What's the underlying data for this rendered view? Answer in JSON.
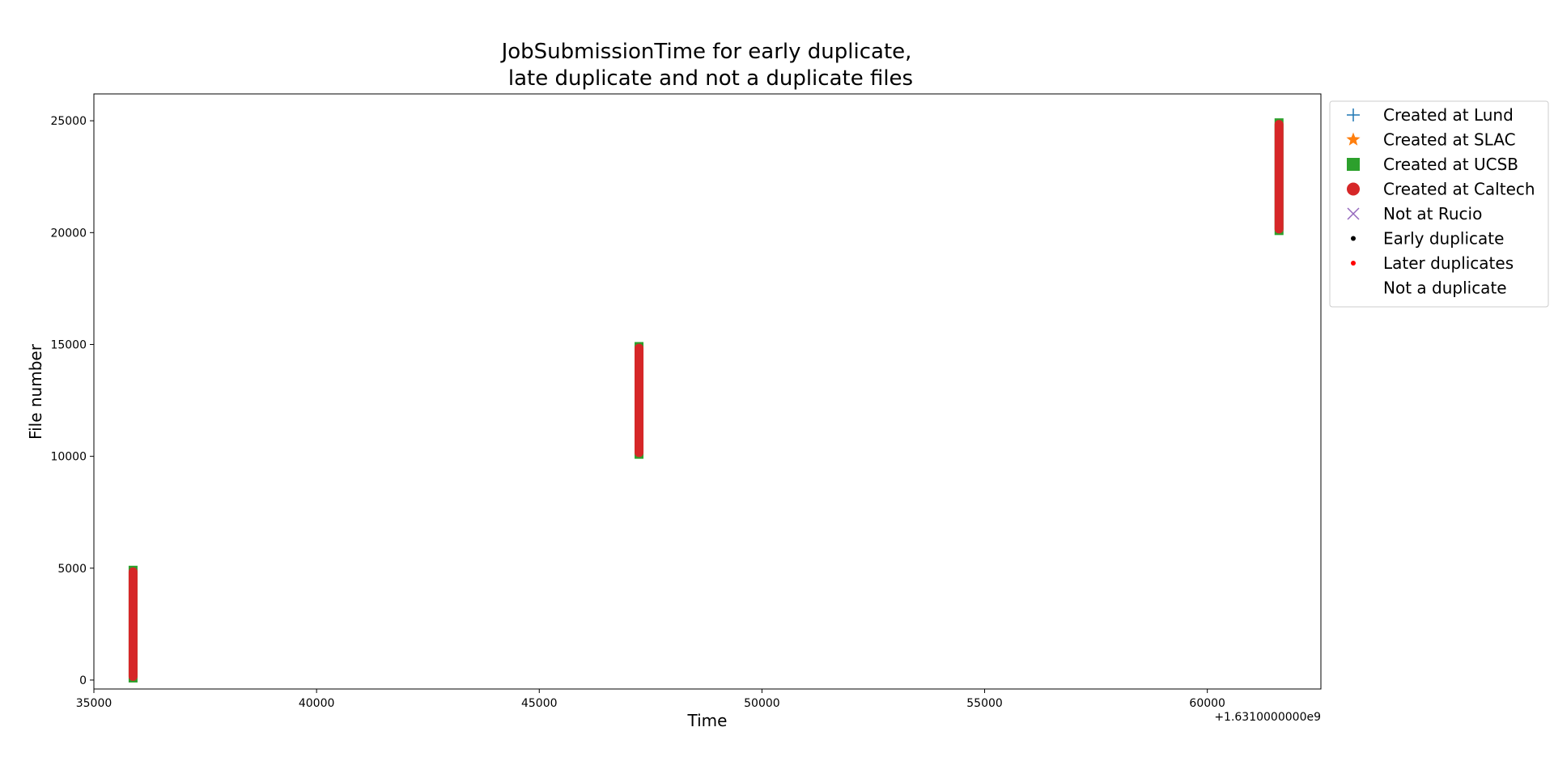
{
  "chart_data": {
    "type": "scatter",
    "title_line1": "JobSubmissionTime for early duplicate,",
    "title_line2": "late duplicate and not a duplicate files",
    "xlabel": "Time",
    "ylabel": "File number",
    "x_offset_label": "+1.6310000000e9",
    "xlim": [
      35000,
      62550
    ],
    "ylim": [
      -400,
      26200
    ],
    "x_ticks": [
      35000,
      40000,
      45000,
      50000,
      55000,
      60000
    ],
    "y_ticks": [
      0,
      5000,
      10000,
      15000,
      20000,
      25000
    ],
    "grid": false,
    "legend_placement": "outside-right-top",
    "legend": [
      {
        "label": "Created at Lund",
        "marker": "plus",
        "color": "#1f77b4"
      },
      {
        "label": "Created at SLAC",
        "marker": "star",
        "color": "#ff7f0e"
      },
      {
        "label": "Created at UCSB",
        "marker": "square",
        "color": "#2ca02c"
      },
      {
        "label": "Created at Caltech",
        "marker": "circle",
        "color": "#d62728"
      },
      {
        "label": "Not at Rucio",
        "marker": "x",
        "color": "#9467bd"
      },
      {
        "label": "Early duplicate",
        "marker": "dot",
        "color": "#000000"
      },
      {
        "label": "Later duplicates",
        "marker": "dot",
        "color": "#ff0000"
      },
      {
        "label": "Not a duplicate",
        "marker": "none",
        "color": "#ffffff"
      }
    ],
    "clusters": [
      {
        "x_min": 35780,
        "x_max": 35980,
        "y_min": 0,
        "y_max": 5000
      },
      {
        "x_min": 47140,
        "x_max": 47340,
        "y_min": 10000,
        "y_max": 15000
      },
      {
        "x_min": 61510,
        "x_max": 61710,
        "y_min": 20000,
        "y_max": 25000
      }
    ],
    "colors": {
      "caltech": "#d62728",
      "ucsb": "#2ca02c",
      "inner": "#ffffff"
    }
  }
}
